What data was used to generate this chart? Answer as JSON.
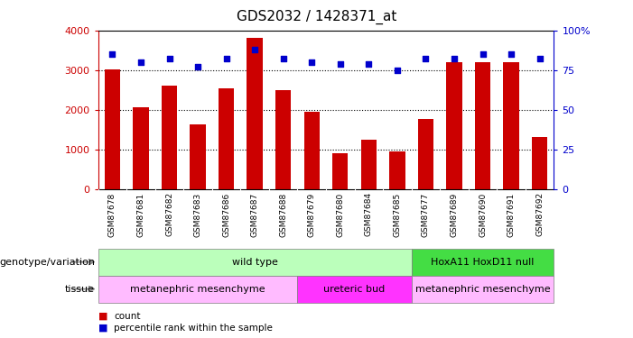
{
  "title": "GDS2032 / 1428371_at",
  "samples": [
    "GSM87678",
    "GSM87681",
    "GSM87682",
    "GSM87683",
    "GSM87686",
    "GSM87687",
    "GSM87688",
    "GSM87679",
    "GSM87680",
    "GSM87684",
    "GSM87685",
    "GSM87677",
    "GSM87689",
    "GSM87690",
    "GSM87691",
    "GSM87692"
  ],
  "counts": [
    3020,
    2060,
    2620,
    1640,
    2540,
    3820,
    2500,
    1960,
    900,
    1240,
    950,
    1760,
    3200,
    3200,
    3200,
    1310
  ],
  "percentiles": [
    85,
    80,
    82,
    77,
    82,
    88,
    82,
    80,
    79,
    79,
    75,
    82,
    82,
    85,
    85,
    82
  ],
  "ylim_left": [
    0,
    4000
  ],
  "ylim_right": [
    0,
    100
  ],
  "yticks_left": [
    0,
    1000,
    2000,
    3000,
    4000
  ],
  "yticks_right": [
    0,
    25,
    50,
    75,
    100
  ],
  "bar_color": "#cc0000",
  "dot_color": "#0000cc",
  "genotype_groups": [
    {
      "label": "wild type",
      "start": 0,
      "end": 10,
      "color": "#bbffbb"
    },
    {
      "label": "HoxA11 HoxD11 null",
      "start": 11,
      "end": 15,
      "color": "#44dd44"
    }
  ],
  "tissue_groups": [
    {
      "label": "metanephric mesenchyme",
      "start": 0,
      "end": 6,
      "color": "#ffbbff"
    },
    {
      "label": "ureteric bud",
      "start": 7,
      "end": 10,
      "color": "#ff33ff"
    },
    {
      "label": "metanephric mesenchyme",
      "start": 11,
      "end": 15,
      "color": "#ffbbff"
    }
  ],
  "legend_count_label": "count",
  "legend_pct_label": "percentile rank within the sample",
  "bar_color_leg": "#cc0000",
  "dot_color_leg": "#0000cc",
  "tick_color_left": "#cc0000",
  "tick_color_right": "#0000cc",
  "xtick_bg": "#cccccc",
  "label_genotype": "genotype/variation",
  "label_tissue": "tissue"
}
